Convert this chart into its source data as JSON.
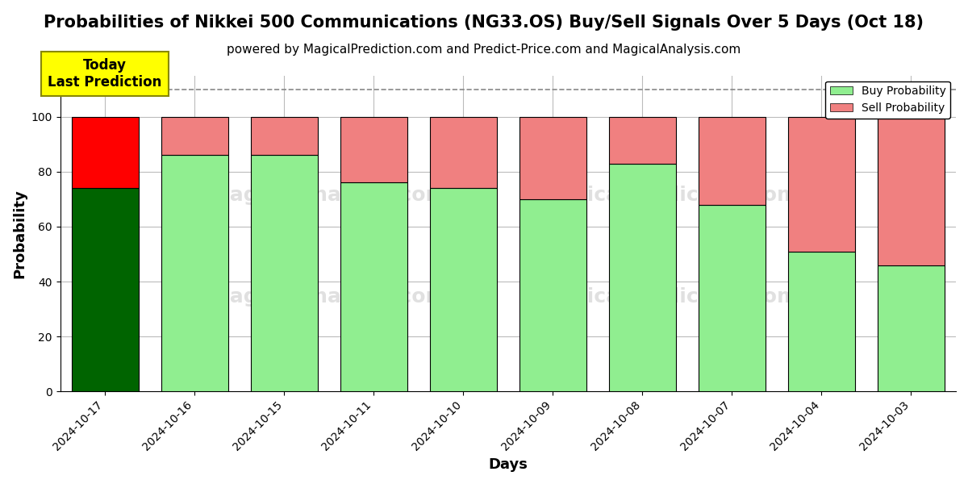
{
  "title": "Probabilities of Nikkei 500 Communications (NG33.OS) Buy/Sell Signals Over 5 Days (Oct 18)",
  "subtitle": "powered by MagicalPrediction.com and Predict-Price.com and MagicalAnalysis.com",
  "xlabel": "Days",
  "ylabel": "Probability",
  "categories": [
    "2024-10-17",
    "2024-10-16",
    "2024-10-15",
    "2024-10-11",
    "2024-10-10",
    "2024-10-09",
    "2024-10-08",
    "2024-10-07",
    "2024-10-04",
    "2024-10-03"
  ],
  "buy_values": [
    74,
    86,
    86,
    76,
    74,
    70,
    83,
    68,
    51,
    46
  ],
  "sell_values": [
    26,
    14,
    14,
    24,
    26,
    30,
    17,
    32,
    49,
    54
  ],
  "buy_colors": [
    "#006400",
    "#90EE90",
    "#90EE90",
    "#90EE90",
    "#90EE90",
    "#90EE90",
    "#90EE90",
    "#90EE90",
    "#90EE90",
    "#90EE90"
  ],
  "sell_colors": [
    "#FF0000",
    "#F08080",
    "#F08080",
    "#F08080",
    "#F08080",
    "#F08080",
    "#F08080",
    "#F08080",
    "#F08080",
    "#F08080"
  ],
  "today_box_color": "#FFFF00",
  "today_box_text": "Today\nLast Prediction",
  "ylim": [
    0,
    115
  ],
  "yticks": [
    0,
    20,
    40,
    60,
    80,
    100
  ],
  "grid_color": "#bbbbbb",
  "background_color": "#ffffff",
  "legend_buy_color": "#90EE90",
  "legend_sell_color": "#F08080",
  "dashed_line_y": 110,
  "title_fontsize": 15,
  "subtitle_fontsize": 11,
  "bar_width": 0.75
}
